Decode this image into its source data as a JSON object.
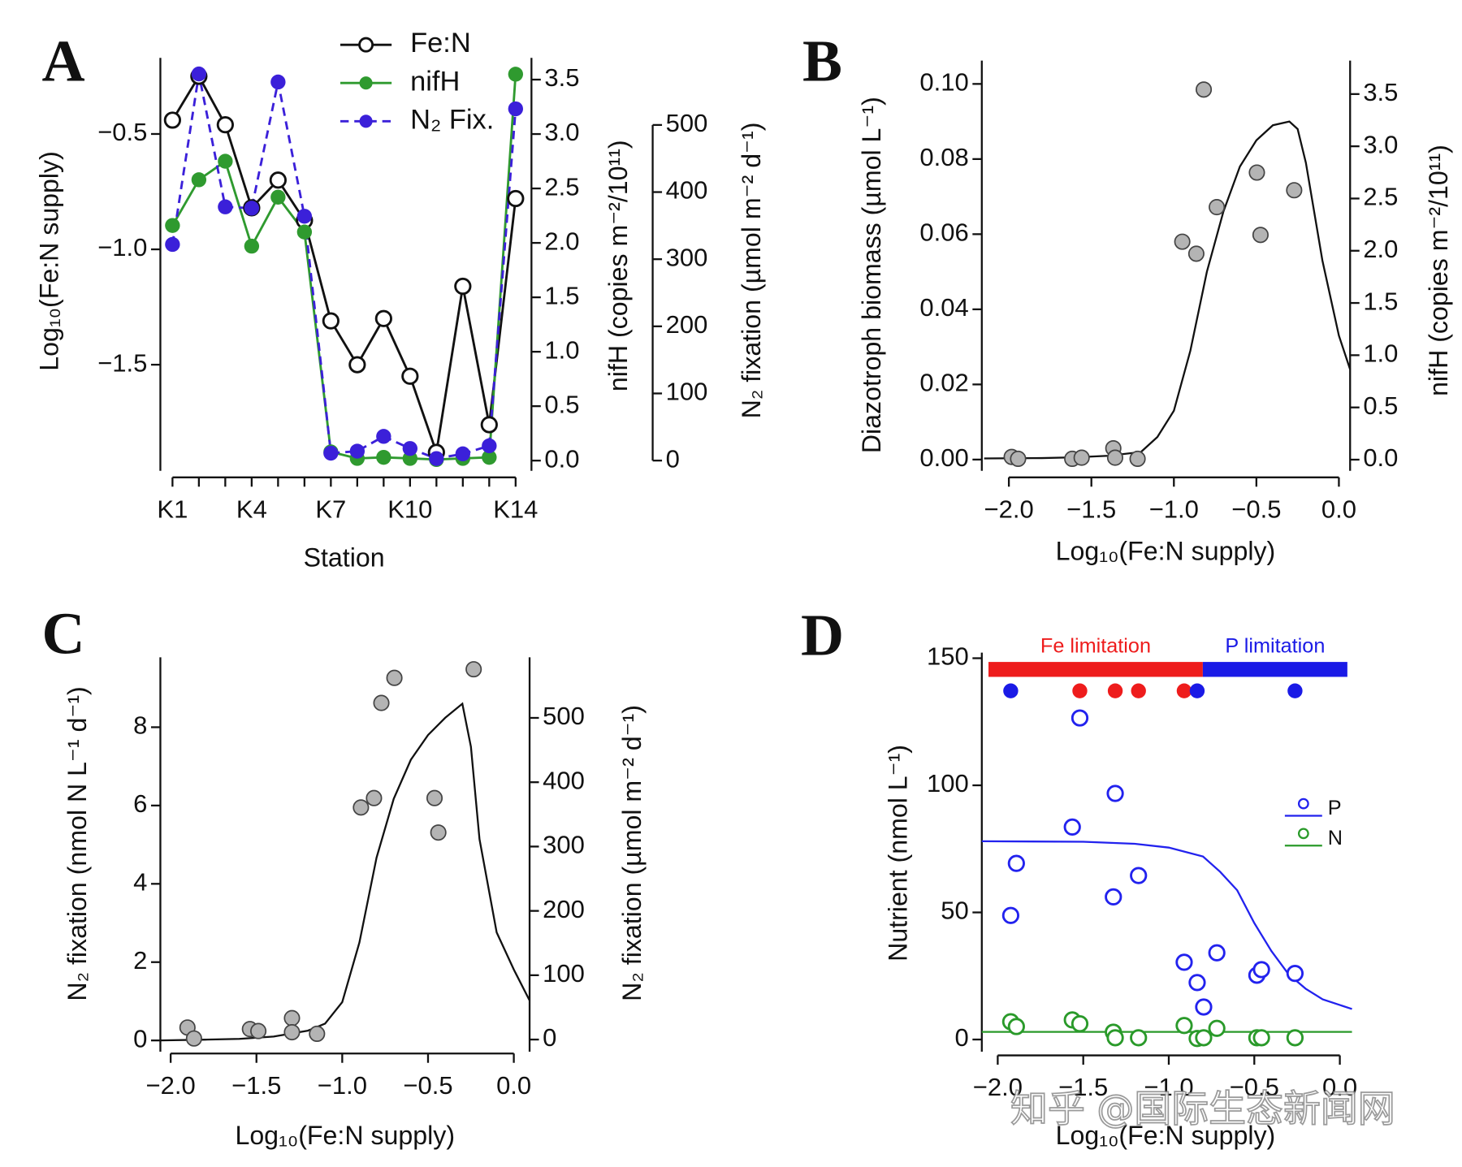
{
  "chart_data": [
    {
      "type": "line",
      "title": "A",
      "categories": [
        "K1",
        null,
        null,
        "K4",
        null,
        null,
        "K7",
        null,
        null,
        "K10",
        null,
        null,
        null,
        "K14"
      ],
      "xlabel": "Station",
      "ylabel": "Log₁₀(Fe:N supply)",
      "y2label": "nifH (copies m⁻²/10¹¹)",
      "y3label": "N₂ fixation (µmol m⁻² d⁻¹)",
      "ylim": [
        -1.96,
        -0.17
      ],
      "yticks": [
        {
          "value": -0.5,
          "label": "−0.5"
        },
        {
          "value": -1.0,
          "label": "−1.0"
        },
        {
          "value": -1.5,
          "label": "−1.5"
        }
      ],
      "y2lim": [
        -0.094,
        3.7
      ],
      "y2ticks": [
        {
          "value": 0,
          "label": "0.0"
        },
        0.5,
        {
          "value": 1,
          "label": "1.0"
        },
        1.5,
        {
          "value": 2,
          "label": "2.0"
        },
        2.5,
        {
          "value": 3,
          "label": "3.0"
        },
        3.5
      ],
      "y3lim": [
        -15.3,
        600
      ],
      "y3ticks": [
        0,
        100,
        200,
        300,
        400,
        500
      ],
      "legend": "top",
      "series": [
        {
          "name": "Fe:N",
          "color": "#111111",
          "marker": "open",
          "values": [
            -0.44,
            -0.25,
            -0.46,
            -0.82,
            -0.7,
            -0.875,
            -1.31,
            -1.5,
            -1.3,
            -1.55,
            -1.88,
            -1.16,
            -1.76,
            -0.78
          ]
        },
        {
          "name": "nifH",
          "color": "#2f9a2f",
          "marker": "filled",
          "axis": "y2",
          "values": [
            2.16,
            2.58,
            2.75,
            1.97,
            2.42,
            2.1,
            0.08,
            0.02,
            0.03,
            0.02,
            0.01,
            0.02,
            0.03,
            3.55
          ]
        },
        {
          "name": "N₂ Fix.",
          "color": "#3b20d9",
          "marker": "filled",
          "dash": true,
          "axis": "y3",
          "values": [
            322,
            576,
            378,
            376,
            564,
            364,
            11,
            14,
            36,
            18,
            3,
            10,
            22,
            524
          ]
        }
      ]
    },
    {
      "type": "scatter",
      "title": "B",
      "xlabel": "Log₁₀(Fe:N supply)",
      "ylabel": "Diazotroph biomass (µmol L⁻¹)",
      "y2label": "nifH (copies m⁻²/10¹¹)",
      "xlim": [
        -2.164,
        0.068
      ],
      "xticks": [
        {
          "value": -2,
          "label": "−2.0"
        },
        {
          "value": -1.5,
          "label": "−1.5"
        },
        {
          "value": -1,
          "label": "−1.0"
        },
        {
          "value": -0.5,
          "label": "−0.5"
        },
        {
          "value": 0,
          "label": "0.0"
        }
      ],
      "ylim": [
        -0.003,
        0.1062
      ],
      "yticks": [
        {
          "value": 0,
          "label": "0.00"
        },
        0.02,
        0.04,
        0.06,
        0.08,
        {
          "value": 0.1,
          "label": "0.10"
        }
      ],
      "y2lim": [
        -0.107,
        3.82
      ],
      "y2ticks": [
        {
          "value": 0,
          "label": "0.0"
        },
        0.5,
        {
          "value": 1,
          "label": "1.0"
        },
        1.5,
        {
          "value": 2,
          "label": "2.0"
        },
        2.5,
        {
          "value": 3,
          "label": "3.0"
        },
        3.5
      ],
      "series": [
        {
          "color": "#b4b4b4",
          "marker": "gray",
          "x": [
            -1.983,
            -1.944,
            -1.616,
            -1.559,
            -1.367,
            -1.356,
            -1.22,
            -0.949,
            -0.864,
            -0.819,
            -0.74,
            -0.497,
            -0.475,
            -0.271
          ],
          "values": [
            0.0007,
            0.0002,
            0.0002,
            0.0005,
            0.003,
            0.0005,
            0.0002,
            0.058,
            0.0548,
            0.0985,
            0.0672,
            0.0764,
            0.0598,
            0.0717
          ],
          "curve_color": "#111111",
          "curve_x": [
            -2.15,
            -1.8,
            -1.6,
            -1.4,
            -1.2,
            -1.1,
            -1.0,
            -0.9,
            -0.8,
            -0.7,
            -0.6,
            -0.5,
            -0.4,
            -0.3,
            -0.25,
            -0.2,
            -0.1,
            0.0,
            0.068
          ],
          "curve_values": [
            0.0003,
            0.0004,
            0.0006,
            0.001,
            0.002,
            0.006,
            0.013,
            0.029,
            0.05,
            0.066,
            0.078,
            0.085,
            0.089,
            0.09,
            0.088,
            0.079,
            0.053,
            0.033,
            0.024
          ]
        }
      ]
    },
    {
      "type": "scatter",
      "title": "C",
      "xlabel": "Log₁₀(Fe:N supply)",
      "ylabel": "N₂ fixation (nmol N L⁻¹ d⁻¹)",
      "y2label": "N₂ fixation (µmol m⁻² d⁻¹)",
      "xlim": [
        -2.06,
        0.092
      ],
      "xticks": [
        {
          "value": -2,
          "label": "−2.0"
        },
        {
          "value": -1.5,
          "label": "−1.5"
        },
        {
          "value": -1,
          "label": "−1.0"
        },
        {
          "value": -0.5,
          "label": "−0.5"
        },
        {
          "value": 0,
          "label": "0.0"
        }
      ],
      "ylim": [
        -0.286,
        9.786
      ],
      "yticks": [
        0,
        2,
        4,
        6,
        8
      ],
      "y2lim": [
        -18.8,
        594.2
      ],
      "y2ticks": [
        0,
        100,
        200,
        300,
        400,
        500
      ],
      "series": [
        {
          "color": "#b4b4b4",
          "marker": "gray",
          "x": [
            -1.902,
            -1.864,
            -1.538,
            -1.489,
            -1.293,
            -1.293,
            -1.147,
            -0.891,
            -0.815,
            -0.772,
            -0.696,
            -0.462,
            -0.44,
            -0.234
          ],
          "values": [
            0.33,
            0.05,
            0.29,
            0.24,
            0.57,
            0.21,
            0.17,
            5.95,
            6.19,
            8.62,
            9.26,
            6.19,
            5.31,
            9.48
          ],
          "curve_color": "#111111",
          "curve_x": [
            -2.06,
            -1.8,
            -1.6,
            -1.4,
            -1.2,
            -1.1,
            -1.0,
            -0.9,
            -0.8,
            -0.7,
            -0.6,
            -0.5,
            -0.4,
            -0.3,
            -0.25,
            -0.2,
            -0.1,
            0.0,
            0.092
          ],
          "curve_values": [
            0.0,
            0.02,
            0.04,
            0.1,
            0.25,
            0.43,
            0.98,
            2.5,
            4.67,
            6.17,
            7.17,
            7.8,
            8.24,
            8.6,
            7.5,
            5.14,
            2.76,
            1.81,
            1.02
          ]
        }
      ]
    },
    {
      "type": "scatter",
      "title": "D",
      "xlabel": "Log₁₀(Fe:N supply)",
      "ylabel": "Nutrient (nmol L⁻¹)",
      "xlim": [
        -2.093,
        0.071
      ],
      "xticks": [
        {
          "value": -2,
          "label": "−2.0"
        },
        {
          "value": -1.5,
          "label": "−1.5"
        },
        {
          "value": -1,
          "label": "−1.0"
        },
        {
          "value": -0.5,
          "label": "−0.5"
        },
        {
          "value": 0,
          "label": "0.0"
        }
      ],
      "ylim": [
        -4.77,
        152.2
      ],
      "yticks": [
        0,
        50,
        100,
        150
      ],
      "legend": "right",
      "bands": [
        {
          "label": "Fe limitation",
          "color": "#ee1c1c",
          "range": [
            -2.054,
            -0.801
          ],
          "points": [
            -1.52,
            -1.313,
            -1.177,
            -0.91
          ]
        },
        {
          "label": "P limitation",
          "color": "#1a1ae6",
          "range": [
            -0.801,
            0.044
          ],
          "points": [
            -1.924,
            -0.834,
            -0.262
          ]
        }
      ],
      "series": [
        {
          "name": "P",
          "color": "#2222ee",
          "marker": "open",
          "x": [
            -1.924,
            -1.891,
            -1.564,
            -1.52,
            -1.324,
            -1.313,
            -1.177,
            -0.91,
            -0.834,
            -0.796,
            -0.719,
            -0.485,
            -0.458,
            -0.262
          ],
          "values": [
            48.8,
            69.3,
            83.6,
            126.5,
            56.1,
            96.8,
            64.5,
            30.4,
            22.4,
            12.8,
            34.1,
            25.3,
            27.5,
            26.0
          ],
          "curve_color": "#2222ee",
          "curve_x": [
            -2.093,
            -1.5,
            -1.2,
            -1.0,
            -0.8,
            -0.7,
            -0.6,
            -0.5,
            -0.4,
            -0.3,
            -0.2,
            -0.1,
            0.071
          ],
          "curve_values": [
            78,
            77.8,
            77,
            75.5,
            72,
            66,
            58.7,
            45.8,
            34.8,
            25.7,
            20,
            15.8,
            12
          ]
        },
        {
          "name": "N",
          "color": "#2a9a2a",
          "marker": "open",
          "x": [
            -1.924,
            -1.891,
            -1.564,
            -1.52,
            -1.324,
            -1.313,
            -1.177,
            -0.91,
            -0.834,
            -0.796,
            -0.719,
            -0.485,
            -0.458,
            -0.262
          ],
          "values": [
            7.0,
            5.1,
            7.7,
            6.2,
            2.9,
            0.7,
            0.7,
            5.5,
            0.4,
            0.7,
            4.4,
            0.7,
            0.7,
            0.7
          ],
          "curve_color": "#2a9a2a",
          "curve_x": [
            -2.093,
            0.071
          ],
          "curve_values": [
            3.0,
            3.0
          ]
        }
      ]
    }
  ],
  "watermark": "知乎 @国际生态新闻网"
}
